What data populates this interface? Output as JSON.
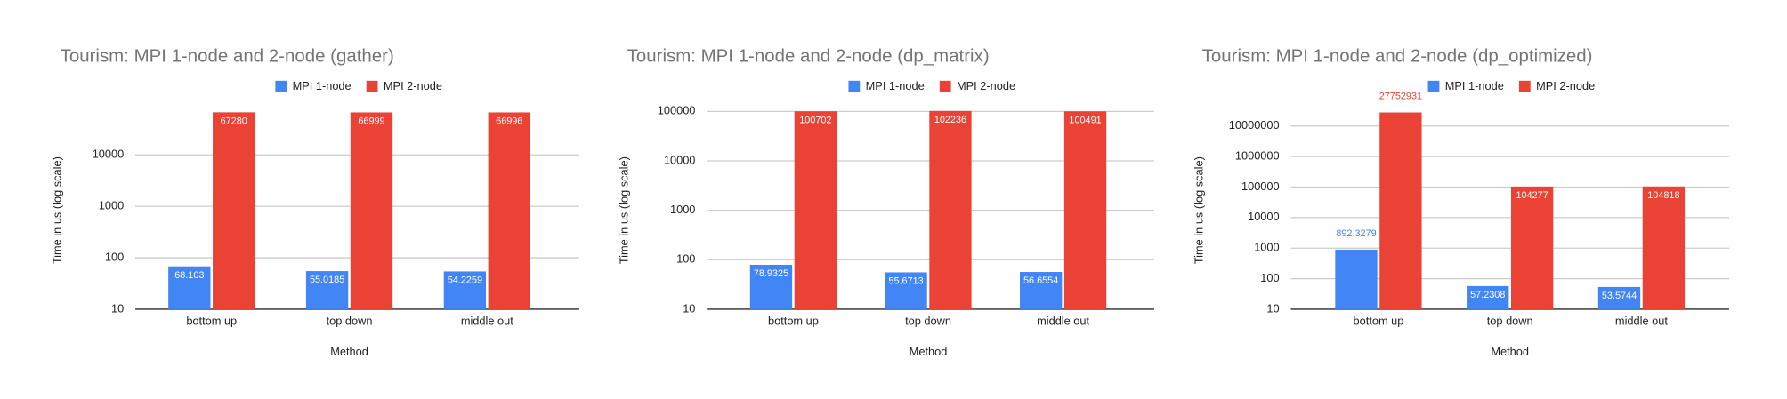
{
  "chart_data": [
    {
      "type": "bar",
      "title": "Tourism: MPI 1-node and 2-node (gather)",
      "x_label": "Method",
      "y_label": "Time in us (log scale)",
      "categories": [
        "bottom up",
        "top down",
        "middle out"
      ],
      "series": [
        {
          "name": "MPI 1-node",
          "color": "#4285f4",
          "values": [
            68.103,
            55.0185,
            54.2259
          ]
        },
        {
          "name": "MPI 2-node",
          "color": "#ea4335",
          "values": [
            67280,
            66999,
            66996
          ]
        }
      ],
      "log_scale": true,
      "ylim": [
        10,
        70000
      ],
      "yticks": [
        10,
        100,
        1000,
        10000
      ],
      "grid": true,
      "legend": "top"
    },
    {
      "type": "bar",
      "title": "Tourism: MPI 1-node and 2-node (dp_matrix)",
      "x_label": "Method",
      "y_label": "Time in us (log scale)",
      "categories": [
        "bottom up",
        "top down",
        "middle out"
      ],
      "series": [
        {
          "name": "MPI 1-node",
          "color": "#4285f4",
          "values": [
            78.9325,
            55.6713,
            56.6554
          ]
        },
        {
          "name": "MPI 2-node",
          "color": "#ea4335",
          "values": [
            100702,
            102236,
            100491
          ]
        }
      ],
      "log_scale": true,
      "ylim": [
        10,
        100000
      ],
      "yticks": [
        10,
        100,
        1000,
        10000,
        100000
      ],
      "grid": true,
      "legend": "top"
    },
    {
      "type": "bar",
      "title": "Tourism: MPI 1-node and 2-node (dp_optimized)",
      "x_label": "Method",
      "y_label": "Time in us (log scale)",
      "categories": [
        "bottom up",
        "top down",
        "middle out"
      ],
      "series": [
        {
          "name": "MPI 1-node",
          "color": "#4285f4",
          "values": [
            892.3279,
            57.2308,
            53.5744
          ]
        },
        {
          "name": "MPI 2-node",
          "color": "#ea4335",
          "values": [
            27752931,
            104277,
            104818
          ]
        }
      ],
      "log_scale": true,
      "ylim": [
        10,
        30000000
      ],
      "yticks": [
        10,
        100,
        1000,
        10000,
        100000,
        1000000,
        10000000
      ],
      "grid": true,
      "legend": "top"
    }
  ]
}
